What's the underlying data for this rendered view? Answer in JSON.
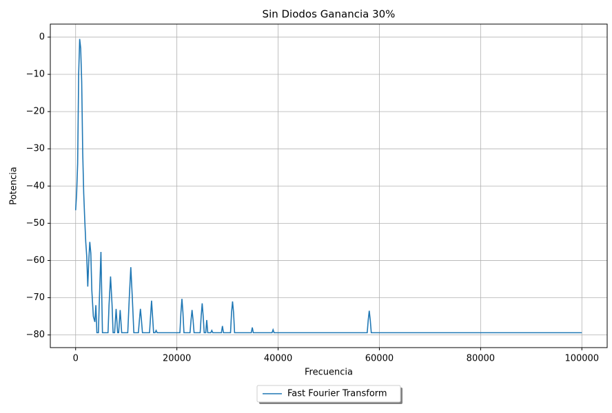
{
  "chart_data": {
    "type": "line",
    "title": "Sin Diodos Ganancia 30%",
    "xlabel": "Frecuencia",
    "ylabel": "Potencia",
    "x": [
      0,
      200,
      400,
      600,
      800,
      1000,
      1200,
      1400,
      1600,
      1800,
      2000,
      2200,
      2400,
      2600,
      2800,
      3000,
      3200,
      3500,
      3800,
      4000,
      4200,
      4500,
      4700,
      5000,
      5300,
      6400,
      6600,
      6900,
      7200,
      7400,
      7700,
      8000,
      8300,
      8500,
      8800,
      9100,
      10300,
      10600,
      10900,
      11200,
      11500,
      12400,
      12600,
      12800,
      13000,
      13200,
      14600,
      14800,
      15000,
      15200,
      15400,
      15700,
      15900,
      16100,
      20600,
      20800,
      21000,
      21200,
      21400,
      22600,
      22800,
      23000,
      23200,
      23400,
      24600,
      24800,
      25000,
      25200,
      25400,
      25700,
      25900,
      26100,
      26700,
      26900,
      27100,
      28800,
      29000,
      29200,
      30600,
      30800,
      31000,
      31200,
      31400,
      34700,
      34900,
      35100,
      38800,
      39000,
      39200,
      57600,
      57800,
      58000,
      58200,
      58400,
      100000
    ],
    "series": [
      {
        "name": "Fast Fourier Transform",
        "color": "#1f77b4",
        "values": [
          -46.5,
          -42,
          -34,
          -10,
          -0.5,
          -3,
          -12,
          -31,
          -42,
          -49,
          -55,
          -59,
          -67,
          -60,
          -55,
          -58,
          -68,
          -75,
          -76.5,
          -72,
          -79.4,
          -79.4,
          -70,
          -57.7,
          -79.4,
          -79.4,
          -72,
          -64.3,
          -72,
          -79.4,
          -79.4,
          -73,
          -79.4,
          -79.4,
          -73.3,
          -79.4,
          -79.4,
          -70,
          -61.8,
          -70,
          -79.4,
          -79.4,
          -76,
          -73,
          -76,
          -79.4,
          -79.4,
          -75,
          -70.8,
          -75,
          -79.4,
          -79.4,
          -78.8,
          -79.4,
          -79.4,
          -74,
          -70.3,
          -74,
          -79.4,
          -79.4,
          -76,
          -73.3,
          -76,
          -79.4,
          -79.4,
          -75,
          -71.5,
          -75,
          -79.4,
          -79.4,
          -76,
          -79.4,
          -79.4,
          -78.8,
          -79.4,
          -79.4,
          -77.6,
          -79.4,
          -79.4,
          -74,
          -71,
          -74,
          -79.4,
          -79.4,
          -78,
          -79.4,
          -79.4,
          -78.6,
          -79.4,
          -79.4,
          -76,
          -73.5,
          -76,
          -79.4,
          -79.4
        ]
      }
    ],
    "xlim": [
      -5000,
      105000
    ],
    "ylim": [
      -83.4,
      3.5
    ],
    "xticks": [
      0,
      20000,
      40000,
      60000,
      80000,
      100000
    ],
    "yticks": [
      {
        "value": -80,
        "label": "−80"
      },
      {
        "value": -70,
        "label": "−70"
      },
      {
        "value": -60,
        "label": "−60"
      },
      {
        "value": -50,
        "label": "−50"
      },
      {
        "value": -40,
        "label": "−40"
      },
      {
        "value": -30,
        "label": "−30"
      },
      {
        "value": -20,
        "label": "−20"
      },
      {
        "value": -10,
        "label": "−10"
      },
      0
    ],
    "grid": true,
    "legend": "bottom"
  }
}
